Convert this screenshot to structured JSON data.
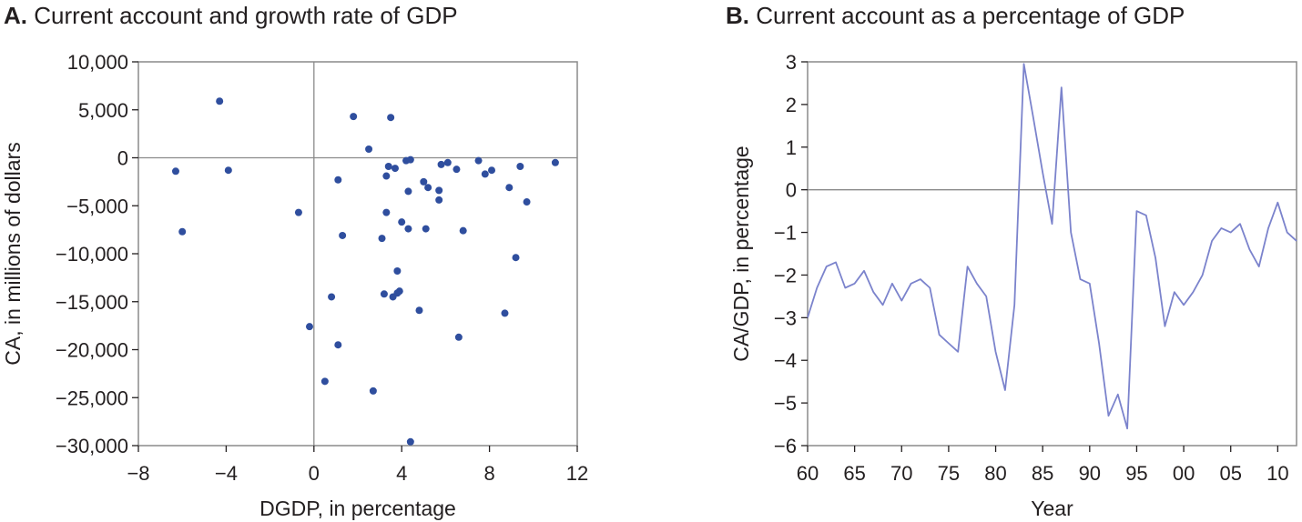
{
  "chart_data": [
    {
      "type": "scatter",
      "panel_letter": "A.",
      "title": "Current account and growth rate of GDP",
      "xlabel": "DGDP, in percentage",
      "ylabel": "CA, in millions of dollars",
      "xlim": [
        -8,
        12
      ],
      "ylim": [
        -30000,
        10000
      ],
      "xticks": [
        -8,
        -4,
        0,
        4,
        8,
        12
      ],
      "xtick_labels": [
        "−8",
        "−4",
        "0",
        "4",
        "8",
        "12"
      ],
      "yticks": [
        10000,
        5000,
        0,
        -5000,
        -10000,
        -15000,
        -20000,
        -25000,
        -30000
      ],
      "ytick_labels": [
        "10,000",
        "5,000",
        "0",
        "−5,000",
        "−10,000",
        "−15,000",
        "−20,000",
        "−25,000",
        "−30,000"
      ],
      "zero_lines": true,
      "color": "#2f4e9e",
      "points": [
        {
          "x": -6.3,
          "y": -1400
        },
        {
          "x": -6.0,
          "y": -7700
        },
        {
          "x": -4.3,
          "y": 5900
        },
        {
          "x": -3.9,
          "y": -1300
        },
        {
          "x": -0.7,
          "y": -5700
        },
        {
          "x": -0.2,
          "y": -17600
        },
        {
          "x": 0.5,
          "y": -23300
        },
        {
          "x": 0.8,
          "y": -14500
        },
        {
          "x": 1.1,
          "y": -2300
        },
        {
          "x": 1.1,
          "y": -19500
        },
        {
          "x": 1.3,
          "y": -8100
        },
        {
          "x": 1.8,
          "y": 4300
        },
        {
          "x": 2.5,
          "y": 900
        },
        {
          "x": 2.7,
          "y": -24300
        },
        {
          "x": 3.1,
          "y": -8400
        },
        {
          "x": 3.2,
          "y": -14200
        },
        {
          "x": 3.3,
          "y": -1900
        },
        {
          "x": 3.3,
          "y": -5700
        },
        {
          "x": 3.4,
          "y": -900
        },
        {
          "x": 3.5,
          "y": 4200
        },
        {
          "x": 3.6,
          "y": -14500
        },
        {
          "x": 3.7,
          "y": -1100
        },
        {
          "x": 3.8,
          "y": -14100
        },
        {
          "x": 3.8,
          "y": -11800
        },
        {
          "x": 3.9,
          "y": -13900
        },
        {
          "x": 4.0,
          "y": -6700
        },
        {
          "x": 4.2,
          "y": -300
        },
        {
          "x": 4.3,
          "y": -3500
        },
        {
          "x": 4.3,
          "y": -7400
        },
        {
          "x": 4.4,
          "y": -200
        },
        {
          "x": 4.4,
          "y": -29600
        },
        {
          "x": 4.8,
          "y": -15900
        },
        {
          "x": 5.0,
          "y": -2500
        },
        {
          "x": 5.1,
          "y": -7400
        },
        {
          "x": 5.2,
          "y": -3100
        },
        {
          "x": 5.7,
          "y": -4400
        },
        {
          "x": 5.7,
          "y": -3400
        },
        {
          "x": 5.8,
          "y": -700
        },
        {
          "x": 6.1,
          "y": -500
        },
        {
          "x": 6.5,
          "y": -1200
        },
        {
          "x": 6.6,
          "y": -18700
        },
        {
          "x": 6.8,
          "y": -7600
        },
        {
          "x": 7.5,
          "y": -300
        },
        {
          "x": 7.8,
          "y": -1700
        },
        {
          "x": 8.1,
          "y": -1300
        },
        {
          "x": 8.7,
          "y": -16200
        },
        {
          "x": 8.9,
          "y": -3100
        },
        {
          "x": 9.2,
          "y": -10400
        },
        {
          "x": 9.4,
          "y": -900
        },
        {
          "x": 9.7,
          "y": -4600
        },
        {
          "x": 11.0,
          "y": -500
        }
      ]
    },
    {
      "type": "line",
      "panel_letter": "B.",
      "title": "Current account as a percentage of GDP",
      "xlabel": "Year",
      "ylabel": "CA/GDP, in percentage",
      "xlim": [
        1960,
        2012
      ],
      "ylim": [
        -6,
        3
      ],
      "xticks": [
        1960,
        1965,
        1970,
        1975,
        1980,
        1985,
        1990,
        1995,
        2000,
        2005,
        2010
      ],
      "xtick_labels": [
        "60",
        "65",
        "70",
        "75",
        "80",
        "85",
        "90",
        "95",
        "00",
        "05",
        "10"
      ],
      "yticks": [
        3,
        2,
        1,
        0,
        -1,
        -2,
        -3,
        -4,
        -5,
        -6
      ],
      "ytick_labels": [
        "3",
        "2",
        "1",
        "0",
        "−1",
        "−2",
        "−3",
        "−4",
        "−5",
        "−6"
      ],
      "zero_line": true,
      "color": "#7b83cc",
      "x": [
        1960,
        1961,
        1962,
        1963,
        1964,
        1965,
        1966,
        1967,
        1968,
        1969,
        1970,
        1971,
        1972,
        1973,
        1974,
        1975,
        1976,
        1977,
        1978,
        1979,
        1980,
        1981,
        1982,
        1983,
        1984,
        1985,
        1986,
        1987,
        1988,
        1989,
        1990,
        1991,
        1992,
        1993,
        1994,
        1995,
        1996,
        1997,
        1998,
        1999,
        2000,
        2001,
        2002,
        2003,
        2004,
        2005,
        2006,
        2007,
        2008,
        2009,
        2010,
        2011,
        2012
      ],
      "y": [
        -3.0,
        -2.3,
        -1.8,
        -1.7,
        -2.3,
        -2.2,
        -1.9,
        -2.4,
        -2.7,
        -2.2,
        -2.6,
        -2.2,
        -2.1,
        -2.3,
        -3.4,
        -3.6,
        -3.8,
        -1.8,
        -2.2,
        -2.5,
        -3.8,
        -4.7,
        -2.7,
        2.95,
        1.7,
        0.4,
        -0.8,
        2.4,
        -1.0,
        -2.1,
        -2.2,
        -3.6,
        -5.3,
        -4.8,
        -5.6,
        -0.5,
        -0.6,
        -1.6,
        -3.2,
        -2.4,
        -2.7,
        -2.4,
        -2.0,
        -1.2,
        -0.9,
        -1.0,
        -0.8,
        -1.4,
        -1.8,
        -0.9,
        -0.3,
        -1.0,
        -1.2
      ]
    }
  ]
}
